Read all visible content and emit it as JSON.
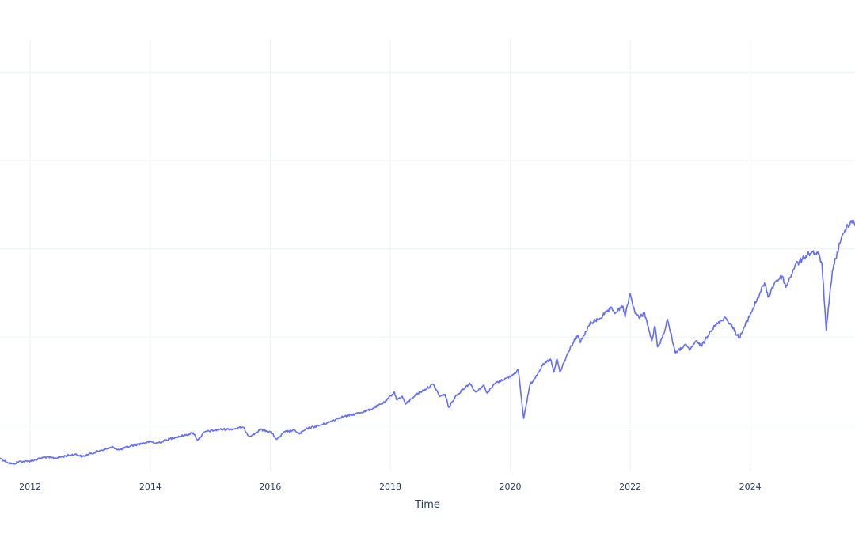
{
  "chart_data": {
    "type": "line",
    "title": "",
    "xlabel": "Time",
    "ylabel": "",
    "x_tick_labels": [
      "2012",
      "2014",
      "2016",
      "2018",
      "2020",
      "2022",
      "2024"
    ],
    "xlim": [
      "2011-07-01",
      "2025-09-30"
    ],
    "ylim": [
      38,
      430
    ],
    "y_gridlines": [
      80,
      160,
      240,
      320,
      400
    ],
    "grid": true,
    "legend": "none",
    "colors": {
      "series": "#636efa",
      "grid": "#ebf0f8",
      "text": "#2a3f5f",
      "background": "#ffffff"
    },
    "series": [
      {
        "x": [
          "2011-07-01",
          "2011-08-10",
          "2011-09-20",
          "2011-10-25",
          "2011-12-15",
          "2012-02-01",
          "2012-04-01",
          "2012-06-01",
          "2012-08-01",
          "2012-10-01",
          "2012-11-15",
          "2013-01-01",
          "2013-03-01",
          "2013-05-20",
          "2013-06-25",
          "2013-09-01",
          "2013-12-31",
          "2014-02-05",
          "2014-04-01",
          "2014-06-01",
          "2014-08-05",
          "2014-09-20",
          "2014-10-15",
          "2014-12-01",
          "2015-03-01",
          "2015-05-20",
          "2015-07-20",
          "2015-08-25",
          "2015-09-29",
          "2015-11-03",
          "2016-01-01",
          "2016-02-11",
          "2016-04-01",
          "2016-06-01",
          "2016-06-27",
          "2016-08-15",
          "2016-11-04",
          "2016-12-31",
          "2017-03-01",
          "2017-06-01",
          "2017-09-01",
          "2017-12-01",
          "2018-01-26",
          "2018-02-08",
          "2018-03-15",
          "2018-04-05",
          "2018-06-01",
          "2018-09-20",
          "2018-10-29",
          "2018-11-30",
          "2018-12-24",
          "2019-02-01",
          "2019-04-30",
          "2019-06-03",
          "2019-07-26",
          "2019-08-14",
          "2019-10-01",
          "2019-12-31",
          "2020-02-19",
          "2020-03-23",
          "2020-04-29",
          "2020-06-08",
          "2020-07-15",
          "2020-09-02",
          "2020-09-23",
          "2020-10-12",
          "2020-10-30",
          "2020-12-31",
          "2021-02-12",
          "2021-03-04",
          "2021-04-30",
          "2021-06-30",
          "2021-08-31",
          "2021-09-02",
          "2021-10-04",
          "2021-11-18",
          "2021-12-01",
          "2021-12-29",
          "2022-01-04",
          "2022-01-27",
          "2022-02-24",
          "2022-03-29",
          "2022-05-12",
          "2022-05-31",
          "2022-06-16",
          "2022-07-15",
          "2022-08-16",
          "2022-09-30",
          "2022-10-12",
          "2022-11-30",
          "2022-12-28",
          "2023-02-02",
          "2023-03-13",
          "2023-04-30",
          "2023-06-15",
          "2023-07-31",
          "2023-09-01",
          "2023-10-27",
          "2023-12-31",
          "2024-03-28",
          "2024-04-19",
          "2024-05-31",
          "2024-07-16",
          "2024-08-05",
          "2024-09-30",
          "2024-11-11",
          "2024-12-06",
          "2025-01-10",
          "2025-02-19",
          "2025-03-13",
          "2025-04-08",
          "2025-05-15",
          "2025-06-30",
          "2025-07-31",
          "2025-08-15",
          "2025-09-20",
          "2025-09-30"
        ],
        "y": [
          50,
          46.5,
          44.5,
          47,
          47,
          48.5,
          51,
          50,
          52,
          53.5,
          51.5,
          54,
          57,
          60,
          57.5,
          61,
          65,
          63.5,
          66,
          69,
          71,
          73,
          66.5,
          74,
          76,
          76.5,
          78,
          70,
          72,
          76,
          74,
          67,
          74,
          75,
          72,
          77,
          80,
          83,
          87,
          90,
          94,
          101,
          110,
          103,
          106,
          99,
          107,
          117,
          106,
          108,
          96,
          106,
          118,
          110,
          116,
          109,
          118,
          124,
          130,
          86,
          116,
          125,
          134,
          140,
          128,
          140,
          128,
          150,
          161,
          155,
          172,
          177,
          185,
          186,
          182,
          188,
          178,
          199,
          197,
          184,
          177,
          182,
          156,
          170,
          151,
          159,
          176,
          147,
          146,
          153,
          148,
          156,
          152,
          165,
          172,
          178,
          172,
          159,
          180,
          209,
          196,
          210,
          215,
          205,
          225,
          230,
          234,
          237,
          235,
          226,
          166,
          220,
          245,
          257,
          262,
          266,
          261
        ]
      }
    ]
  }
}
